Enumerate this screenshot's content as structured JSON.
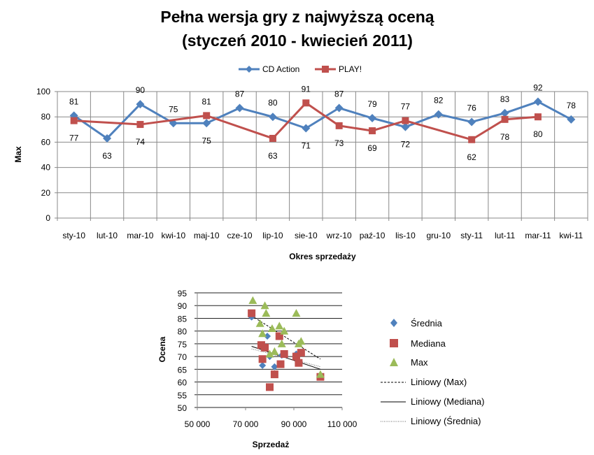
{
  "chart_data": [
    {
      "type": "line",
      "title": [
        "Pełna wersja gry z najwyższą oceną",
        "(styczeń 2010 - kwiecień 2011)"
      ],
      "xlabel": "Okres sprzedaży",
      "ylabel": "Max",
      "ylim": [
        0,
        100
      ],
      "yticks": [
        0,
        20,
        40,
        60,
        80,
        100
      ],
      "categories": [
        "sty-10",
        "lut-10",
        "mar-10",
        "kwi-10",
        "maj-10",
        "cze-10",
        "lip-10",
        "sie-10",
        "wrz-10",
        "paź-10",
        "lis-10",
        "gru-10",
        "sty-11",
        "lut-11",
        "mar-11",
        "kwi-11"
      ],
      "legend_position": "top",
      "series": [
        {
          "name": "CD Action",
          "color": "#4F81BD",
          "marker": "diamond",
          "values": [
            81,
            63,
            90,
            75,
            75,
            87,
            80,
            71,
            87,
            79,
            72,
            82,
            76,
            83,
            92,
            78
          ],
          "labels": [
            "81",
            "63",
            "90",
            "75",
            "75",
            "87",
            "80",
            "71",
            "87",
            "79",
            "72",
            "82",
            "76",
            "83",
            "92",
            "78"
          ]
        },
        {
          "name": "PLAY!",
          "color": "#C0504D",
          "marker": "square",
          "values": [
            77,
            null,
            74,
            null,
            81,
            null,
            63,
            91,
            73,
            69,
            77,
            null,
            62,
            78,
            80,
            null
          ],
          "labels": [
            "77",
            null,
            "74",
            null,
            "81",
            null,
            "63",
            "91",
            "73",
            "69",
            "77",
            null,
            "62",
            "78",
            "80",
            null
          ]
        }
      ]
    },
    {
      "type": "scatter",
      "xlabel": "Sprzedaż",
      "ylabel": "Ocena",
      "xlim": [
        50000,
        110000
      ],
      "ylim": [
        50,
        95
      ],
      "xticks": [
        50000,
        70000,
        90000,
        110000
      ],
      "xtick_labels": [
        "50 000",
        "70 000",
        "90 000",
        "110 000"
      ],
      "yticks": [
        50,
        55,
        60,
        65,
        70,
        75,
        80,
        85,
        90,
        95
      ],
      "legend_position": "right",
      "series": [
        {
          "name": "Średnia",
          "color": "#4F81BD",
          "marker": "diamond",
          "points": [
            [
              72500,
              85.5
            ],
            [
              77000,
              66.5
            ],
            [
              79000,
              78
            ],
            [
              80000,
              70
            ],
            [
              82000,
              66
            ],
            [
              85000,
              70.5
            ],
            [
              91000,
              71
            ],
            [
              92000,
              67.5
            ]
          ]
        },
        {
          "name": "Mediana",
          "color": "#C0504D",
          "marker": "square",
          "points": [
            [
              72500,
              87
            ],
            [
              76500,
              74.5
            ],
            [
              77000,
              69
            ],
            [
              78000,
              73.5
            ],
            [
              80000,
              58
            ],
            [
              82000,
              63
            ],
            [
              84000,
              78
            ],
            [
              84500,
              67
            ],
            [
              86000,
              71
            ],
            [
              91000,
              70
            ],
            [
              92000,
              67.5
            ],
            [
              93000,
              71.5
            ],
            [
              101000,
              62
            ]
          ]
        },
        {
          "name": "Max",
          "color": "#9BBB59",
          "marker": "triangle",
          "points": [
            [
              73000,
              92
            ],
            [
              76000,
              83
            ],
            [
              77000,
              79
            ],
            [
              78000,
              90
            ],
            [
              78500,
              87
            ],
            [
              80000,
              71
            ],
            [
              81000,
              81
            ],
            [
              82000,
              72
            ],
            [
              84000,
              82
            ],
            [
              85000,
              75
            ],
            [
              86000,
              80
            ],
            [
              91000,
              87
            ],
            [
              92000,
              75
            ],
            [
              93000,
              76
            ],
            [
              101000,
              63
            ]
          ]
        }
      ],
      "trendlines": [
        {
          "name": "Liniowy (Max)",
          "style": "dashed",
          "from": [
            72500,
            86
          ],
          "to": [
            101000,
            69
          ]
        },
        {
          "name": "Liniowy (Mediana)",
          "style": "solid",
          "from": [
            72500,
            74
          ],
          "to": [
            101000,
            65
          ]
        },
        {
          "name": "Liniowy (Średnia)",
          "style": "dotted",
          "from": [
            72500,
            73
          ],
          "to": [
            101000,
            66
          ]
        }
      ]
    }
  ]
}
